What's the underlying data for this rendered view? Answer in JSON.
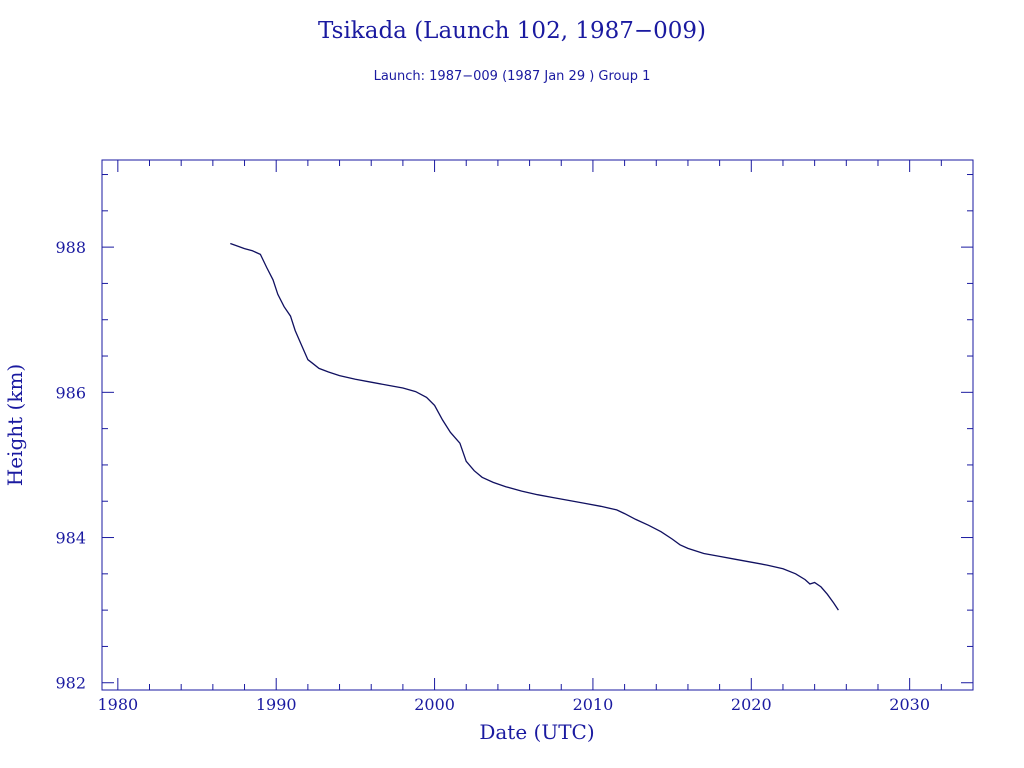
{
  "colors": {
    "axis": "#1a1aa0",
    "line": "#101060"
  },
  "chart_data": {
    "type": "line",
    "title": "Tsikada (Launch 102, 1987−009)",
    "subtitle": "Launch: 1987−009  (1987 Jan 29 )  Group 1",
    "xlabel": "Date (UTC)",
    "ylabel": "Height (km)",
    "xlim": [
      1979,
      2034
    ],
    "ylim": [
      981.9,
      989.2
    ],
    "xticks": [
      1980,
      1990,
      2000,
      2010,
      2020,
      2030
    ],
    "yticks": [
      982,
      984,
      986,
      988
    ],
    "grid": false,
    "series": [
      {
        "x": [
          1987.1,
          1987.5,
          1988.0,
          1988.5,
          1989.0,
          1989.4,
          1989.8,
          1990.1,
          1990.5,
          1990.9,
          1991.2,
          1991.6,
          1992.0,
          1992.3,
          1992.7,
          1993.3,
          1994.0,
          1995.0,
          1996.0,
          1997.0,
          1998.0,
          1998.8,
          1999.5,
          2000.0,
          2000.5,
          2001.0,
          2001.6,
          2002.0,
          2002.5,
          2003.0,
          2003.7,
          2004.5,
          2005.5,
          2006.5,
          2007.5,
          2008.5,
          2009.5,
          2010.5,
          2011.5,
          2012.0,
          2012.7,
          2013.5,
          2014.3,
          2015.0,
          2015.5,
          2016.0,
          2017.0,
          2018.0,
          2019.0,
          2020.0,
          2021.0,
          2022.0,
          2022.8,
          2023.4,
          2023.7,
          2024.0,
          2024.4,
          2024.8,
          2025.2,
          2025.5
        ],
        "y": [
          988.05,
          988.02,
          987.98,
          987.95,
          987.9,
          987.72,
          987.55,
          987.35,
          987.18,
          987.05,
          986.85,
          986.65,
          986.45,
          986.4,
          986.33,
          986.28,
          986.23,
          986.18,
          986.14,
          986.1,
          986.06,
          986.01,
          985.93,
          985.82,
          985.62,
          985.45,
          985.3,
          985.05,
          984.92,
          984.83,
          984.76,
          984.7,
          984.64,
          984.59,
          984.55,
          984.51,
          984.47,
          984.43,
          984.38,
          984.33,
          984.25,
          984.17,
          984.08,
          983.98,
          983.9,
          983.85,
          983.78,
          983.74,
          983.7,
          983.66,
          983.62,
          983.57,
          983.5,
          983.42,
          983.36,
          983.38,
          983.32,
          983.22,
          983.1,
          983.0
        ]
      }
    ]
  }
}
